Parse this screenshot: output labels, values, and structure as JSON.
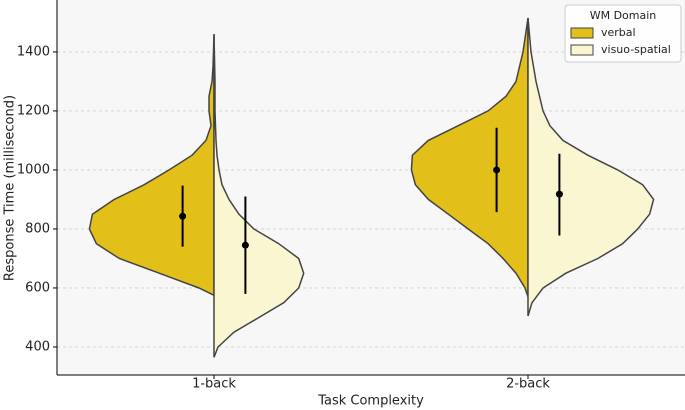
{
  "chart_data": {
    "type": "split-violin",
    "xlabel": "Task Complexity",
    "ylabel": "Response Time (millisecond)",
    "categories": [
      "1-back",
      "2-back"
    ],
    "ylim": [
      305,
      1576
    ],
    "yticks": [
      400,
      600,
      800,
      1000,
      1200,
      1400
    ],
    "grid": true,
    "legend_title": "WM Domain",
    "legend_position": "upper right",
    "series": [
      {
        "name": "verbal",
        "color": "#e3bf1a",
        "values": [
          843,
          1000
        ],
        "ci_low": [
          740,
          857
        ],
        "ci_high": [
          947,
          1143
        ],
        "violins": [
          {
            "y": [
              575,
              600,
              650,
              700,
              750,
              800,
              850,
              900,
              950,
              1000,
              1050,
              1100,
              1150,
              1200,
              1250,
              1300,
              1350,
              1460
            ],
            "width": [
              0,
              15,
              55,
              95,
              118,
              125,
              122,
              100,
              70,
              45,
              22,
              8,
              3,
              5,
              5,
              2,
              1,
              0
            ]
          },
          {
            "y": [
              570,
              600,
              650,
              700,
              750,
              800,
              850,
              900,
              950,
              1000,
              1050,
              1100,
              1150,
              1200,
              1250,
              1300,
              1400,
              1515
            ],
            "width": [
              0,
              3,
              12,
              25,
              40,
              60,
              80,
              100,
              113,
              117,
              116,
              100,
              70,
              40,
              22,
              12,
              5,
              0
            ]
          }
        ]
      },
      {
        "name": "visuo-spatial",
        "color": "#faf6d2",
        "values": [
          745,
          918
        ],
        "ci_low": [
          580,
          778
        ],
        "ci_high": [
          910,
          1055
        ],
        "violins": [
          {
            "y": [
              365,
              400,
              450,
              500,
              550,
              600,
              650,
              700,
              750,
              800,
              850,
              900,
              950,
              1000,
              1050,
              1100,
              1200,
              1300,
              1460
            ],
            "width": [
              0,
              4,
              20,
              45,
              70,
              85,
              90,
              85,
              65,
              40,
              25,
              15,
              8,
              5,
              3,
              2,
              1,
              1,
              0
            ]
          },
          {
            "y": [
              505,
              550,
              600,
              650,
              700,
              750,
              800,
              850,
              900,
              950,
              1000,
              1050,
              1100,
              1150,
              1200,
              1300,
              1400,
              1515
            ],
            "width": [
              0,
              4,
              15,
              38,
              70,
              95,
              110,
              122,
              126,
              115,
              90,
              60,
              35,
              22,
              15,
              8,
              3,
              0
            ]
          }
        ]
      }
    ]
  }
}
